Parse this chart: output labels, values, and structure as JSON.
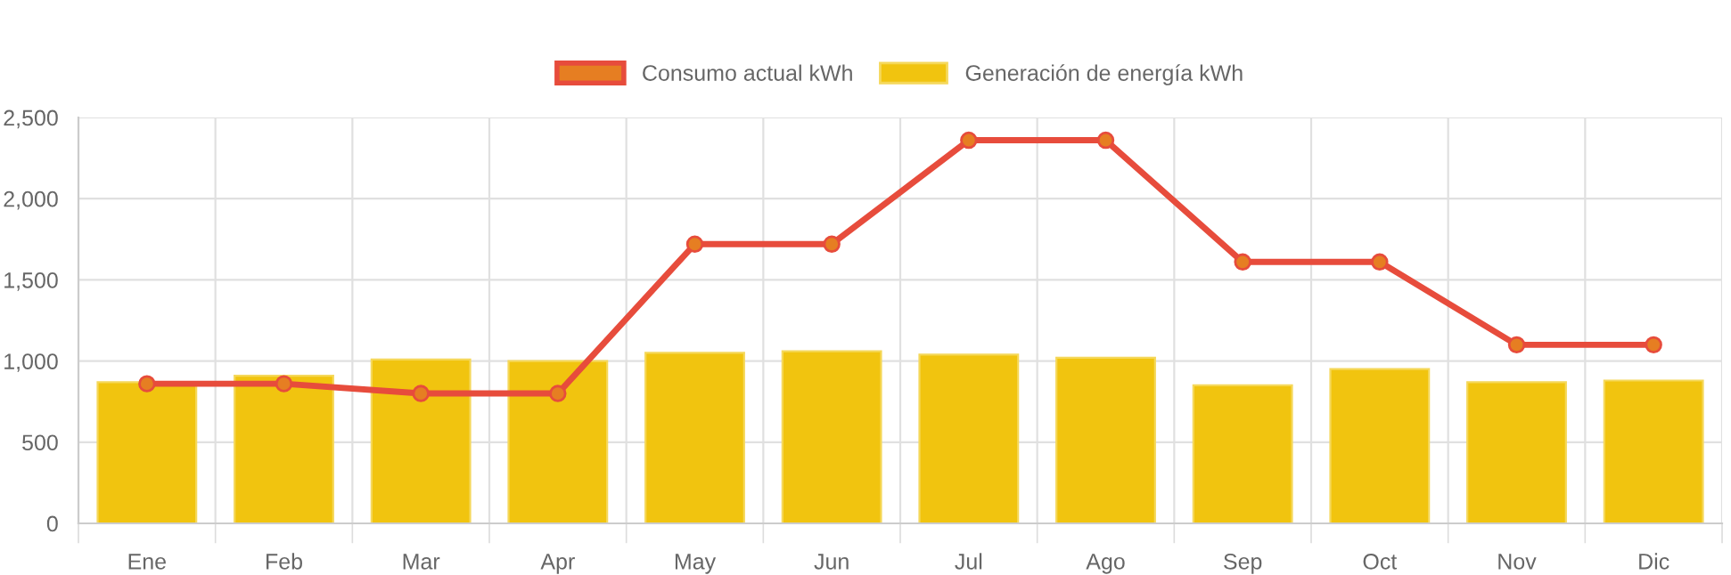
{
  "chart_data": {
    "type": "bar",
    "categories": [
      "Ene",
      "Feb",
      "Mar",
      "Apr",
      "May",
      "Jun",
      "Jul",
      "Ago",
      "Sep",
      "Oct",
      "Nov",
      "Dic"
    ],
    "series": [
      {
        "name": "Consumo actual kWh",
        "type": "line",
        "color": "#e74c3c",
        "marker": "circle",
        "values": [
          860,
          860,
          800,
          800,
          1720,
          1720,
          2360,
          2360,
          1610,
          1610,
          1100,
          1100
        ]
      },
      {
        "name": "Generación de energía kWh",
        "color": "#f1c40f",
        "values": [
          870,
          910,
          1010,
          1000,
          1050,
          1060,
          1040,
          1020,
          850,
          950,
          870,
          880
        ]
      }
    ],
    "ylim": [
      0,
      2500
    ],
    "yticks": [
      0,
      {
        "value": 500,
        "label": "500"
      },
      {
        "value": 1000,
        "label": "1,000"
      },
      {
        "value": 1500,
        "label": "1,500"
      },
      {
        "value": 2000,
        "label": "2,000"
      },
      {
        "value": 2500,
        "label": "2,500"
      }
    ],
    "grid": true,
    "legend": "top"
  }
}
